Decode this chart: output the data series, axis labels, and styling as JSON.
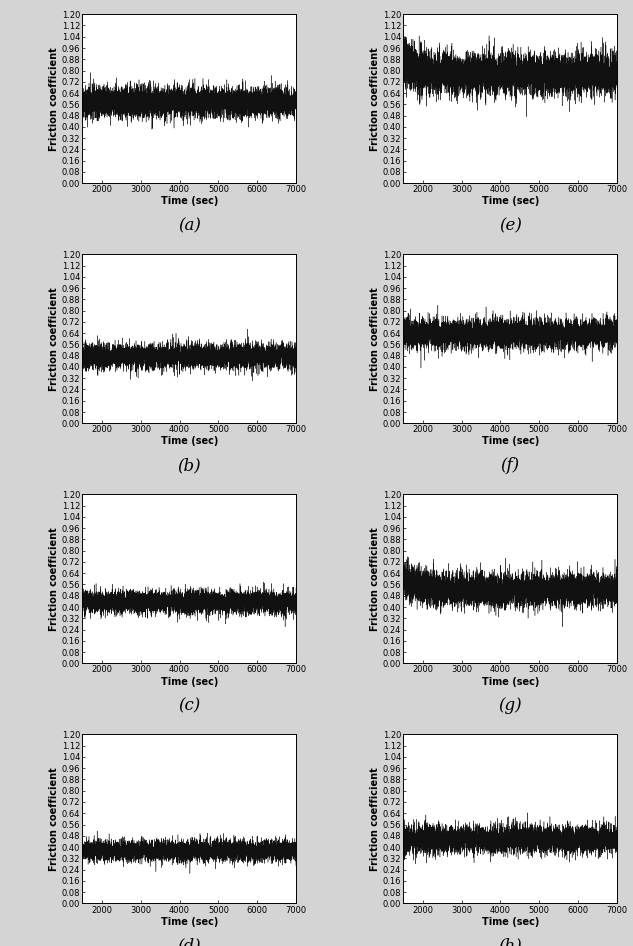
{
  "subplots": [
    {
      "label": "(a)",
      "mean": 0.575,
      "noise": 0.055,
      "start_high": false
    },
    {
      "label": "(b)",
      "mean": 0.475,
      "noise": 0.045,
      "start_high": false
    },
    {
      "label": "(c)",
      "mean": 0.435,
      "noise": 0.042,
      "start_high": false
    },
    {
      "label": "(d)",
      "mean": 0.375,
      "noise": 0.038,
      "start_high": false
    },
    {
      "label": "(e)",
      "mean": 0.775,
      "noise": 0.075,
      "start_high": true
    },
    {
      "label": "(f)",
      "mean": 0.635,
      "noise": 0.055,
      "start_high": false
    },
    {
      "label": "(g)",
      "mean": 0.52,
      "noise": 0.06,
      "start_high": true
    },
    {
      "label": "(h)",
      "mean": 0.455,
      "noise": 0.05,
      "start_high": false
    }
  ],
  "xlim": [
    1500,
    7000
  ],
  "ylim": [
    0.0,
    1.2
  ],
  "xticks": [
    2000,
    3000,
    4000,
    5000,
    6000,
    7000
  ],
  "yticks": [
    0.0,
    0.08,
    0.16,
    0.24,
    0.32,
    0.4,
    0.48,
    0.56,
    0.64,
    0.72,
    0.8,
    0.88,
    0.96,
    1.04,
    1.12,
    1.2
  ],
  "xlabel": "Time (sec)",
  "ylabel": "Friction coefficient",
  "n_points": 5500,
  "line_color": "#111111",
  "line_width": 0.28,
  "bg_color": "#ffffff",
  "label_fontsize": 12,
  "axis_label_fontsize": 7.0,
  "tick_fontsize": 6.0,
  "figure_bg": "#d4d4d4"
}
